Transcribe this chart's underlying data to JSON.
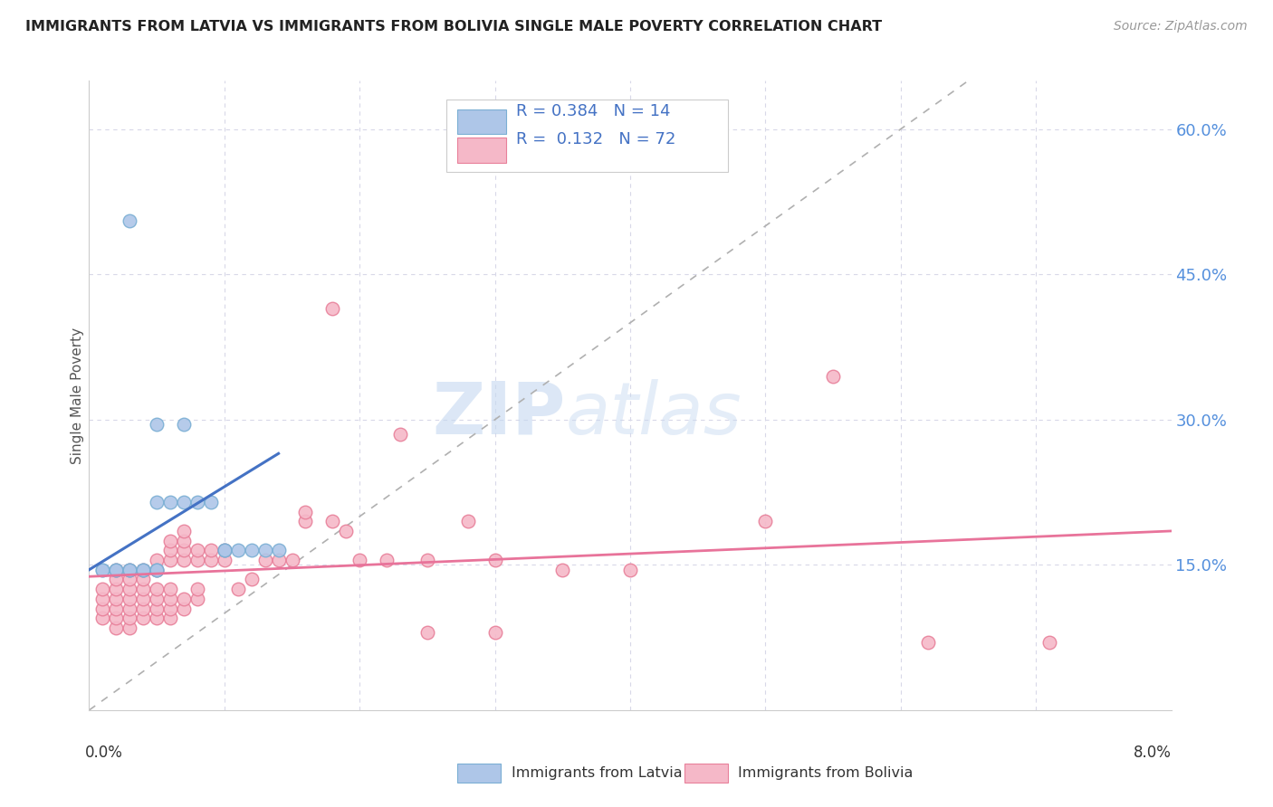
{
  "title": "IMMIGRANTS FROM LATVIA VS IMMIGRANTS FROM BOLIVIA SINGLE MALE POVERTY CORRELATION CHART",
  "source": "Source: ZipAtlas.com",
  "ylabel": "Single Male Poverty",
  "xlim": [
    0.0,
    0.08
  ],
  "ylim": [
    0.0,
    0.65
  ],
  "yticks": [
    0.15,
    0.3,
    0.45,
    0.6
  ],
  "ytick_labels": [
    "15.0%",
    "30.0%",
    "45.0%",
    "60.0%"
  ],
  "xtick_labels": [
    "0.0%",
    "8.0%"
  ],
  "background_color": "#ffffff",
  "watermark_zip": "ZIP",
  "watermark_atlas": "atlas",
  "legend_r_latvia": "0.384",
  "legend_n_latvia": "14",
  "legend_r_bolivia": "0.132",
  "legend_n_bolivia": "72",
  "latvia_color": "#aec6e8",
  "latvia_edge": "#7bafd4",
  "bolivia_color": "#f5b8c8",
  "bolivia_edge": "#e8809a",
  "latvia_line_color": "#4472c4",
  "bolivia_line_color": "#e8739a",
  "diagonal_color": "#b0b0b0",
  "grid_color": "#d8d8e8",
  "latvia_points": [
    [
      0.001,
      0.145
    ],
    [
      0.001,
      0.145
    ],
    [
      0.002,
      0.145
    ],
    [
      0.002,
      0.145
    ],
    [
      0.003,
      0.145
    ],
    [
      0.003,
      0.145
    ],
    [
      0.004,
      0.145
    ],
    [
      0.004,
      0.145
    ],
    [
      0.005,
      0.145
    ],
    [
      0.005,
      0.145
    ],
    [
      0.005,
      0.215
    ],
    [
      0.006,
      0.215
    ],
    [
      0.007,
      0.215
    ],
    [
      0.007,
      0.295
    ],
    [
      0.008,
      0.215
    ],
    [
      0.009,
      0.215
    ],
    [
      0.01,
      0.165
    ],
    [
      0.01,
      0.165
    ],
    [
      0.011,
      0.165
    ],
    [
      0.012,
      0.165
    ],
    [
      0.013,
      0.165
    ],
    [
      0.014,
      0.165
    ],
    [
      0.003,
      0.505
    ],
    [
      0.005,
      0.295
    ]
  ],
  "bolivia_points": [
    [
      0.001,
      0.095
    ],
    [
      0.001,
      0.105
    ],
    [
      0.001,
      0.115
    ],
    [
      0.001,
      0.125
    ],
    [
      0.002,
      0.085
    ],
    [
      0.002,
      0.095
    ],
    [
      0.002,
      0.105
    ],
    [
      0.002,
      0.115
    ],
    [
      0.002,
      0.125
    ],
    [
      0.002,
      0.135
    ],
    [
      0.002,
      0.145
    ],
    [
      0.003,
      0.085
    ],
    [
      0.003,
      0.095
    ],
    [
      0.003,
      0.105
    ],
    [
      0.003,
      0.115
    ],
    [
      0.003,
      0.125
    ],
    [
      0.003,
      0.135
    ],
    [
      0.003,
      0.145
    ],
    [
      0.004,
      0.095
    ],
    [
      0.004,
      0.105
    ],
    [
      0.004,
      0.115
    ],
    [
      0.004,
      0.125
    ],
    [
      0.004,
      0.135
    ],
    [
      0.004,
      0.145
    ],
    [
      0.005,
      0.095
    ],
    [
      0.005,
      0.105
    ],
    [
      0.005,
      0.115
    ],
    [
      0.005,
      0.125
    ],
    [
      0.005,
      0.145
    ],
    [
      0.005,
      0.155
    ],
    [
      0.006,
      0.095
    ],
    [
      0.006,
      0.105
    ],
    [
      0.006,
      0.115
    ],
    [
      0.006,
      0.125
    ],
    [
      0.006,
      0.155
    ],
    [
      0.006,
      0.165
    ],
    [
      0.006,
      0.175
    ],
    [
      0.007,
      0.105
    ],
    [
      0.007,
      0.115
    ],
    [
      0.007,
      0.155
    ],
    [
      0.007,
      0.165
    ],
    [
      0.007,
      0.175
    ],
    [
      0.007,
      0.185
    ],
    [
      0.008,
      0.115
    ],
    [
      0.008,
      0.125
    ],
    [
      0.008,
      0.155
    ],
    [
      0.008,
      0.165
    ],
    [
      0.009,
      0.155
    ],
    [
      0.009,
      0.165
    ],
    [
      0.01,
      0.155
    ],
    [
      0.01,
      0.165
    ],
    [
      0.011,
      0.125
    ],
    [
      0.012,
      0.135
    ],
    [
      0.013,
      0.155
    ],
    [
      0.014,
      0.155
    ],
    [
      0.015,
      0.155
    ],
    [
      0.016,
      0.195
    ],
    [
      0.016,
      0.205
    ],
    [
      0.018,
      0.195
    ],
    [
      0.019,
      0.185
    ],
    [
      0.02,
      0.155
    ],
    [
      0.022,
      0.155
    ],
    [
      0.025,
      0.155
    ],
    [
      0.028,
      0.195
    ],
    [
      0.03,
      0.155
    ],
    [
      0.035,
      0.145
    ],
    [
      0.04,
      0.145
    ],
    [
      0.05,
      0.195
    ],
    [
      0.018,
      0.415
    ],
    [
      0.023,
      0.285
    ],
    [
      0.025,
      0.08
    ],
    [
      0.03,
      0.08
    ],
    [
      0.055,
      0.345
    ],
    [
      0.062,
      0.07
    ],
    [
      0.071,
      0.07
    ]
  ]
}
